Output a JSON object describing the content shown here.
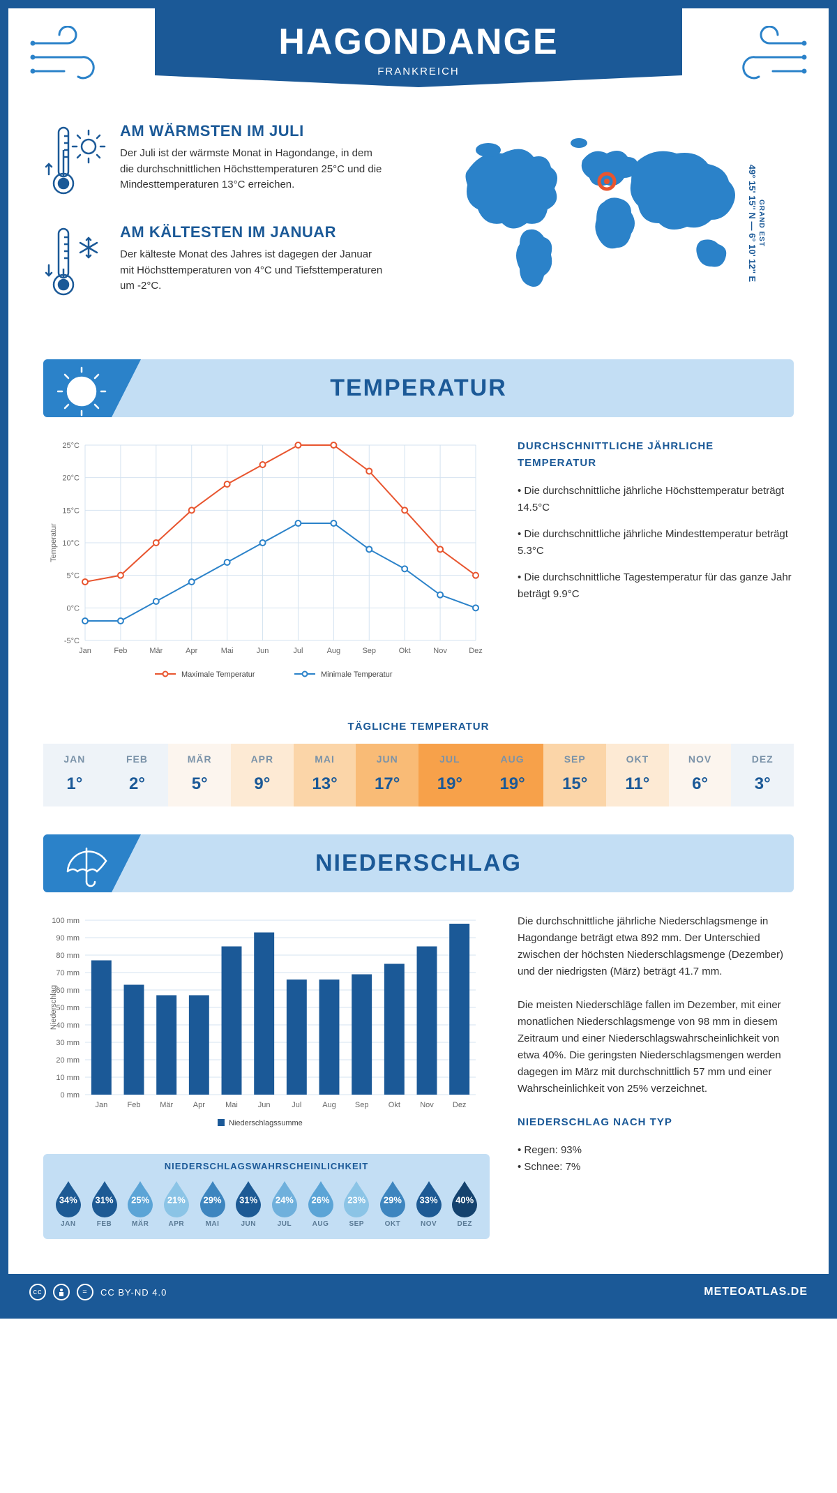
{
  "header": {
    "title": "HAGONDANGE",
    "subtitle": "FRANKREICH"
  },
  "coords": {
    "text": "49° 15' 15'' N — 6° 10' 12'' E",
    "region": "GRAND EST"
  },
  "warmest": {
    "title": "AM WÄRMSTEN IM JULI",
    "body": "Der Juli ist der wärmste Monat in Hagondange, in dem die durchschnittlichen Höchsttemperaturen 25°C und die Mindesttemperaturen 13°C erreichen."
  },
  "coldest": {
    "title": "AM KÄLTESTEN IM JANUAR",
    "body": "Der kälteste Monat des Jahres ist dagegen der Januar mit Höchsttemperaturen von 4°C und Tiefsttemperaturen um -2°C."
  },
  "temperature": {
    "section_title": "TEMPERATUR",
    "chart": {
      "type": "line",
      "months": [
        "Jan",
        "Feb",
        "Mär",
        "Apr",
        "Mai",
        "Jun",
        "Jul",
        "Aug",
        "Sep",
        "Okt",
        "Nov",
        "Dez"
      ],
      "max_series": {
        "label": "Maximale Temperatur",
        "color": "#e8552f",
        "values": [
          4,
          5,
          10,
          15,
          19,
          22,
          25,
          25,
          21,
          15,
          9,
          5
        ]
      },
      "min_series": {
        "label": "Minimale Temperatur",
        "color": "#2b82c9",
        "values": [
          -2,
          -2,
          1,
          4,
          7,
          10,
          13,
          13,
          9,
          6,
          2,
          0
        ]
      },
      "ylabel": "Temperatur",
      "ylim": [
        -5,
        25
      ],
      "ytick_step": 5,
      "grid_color": "#d4e3f0",
      "background_color": "#ffffff"
    },
    "side": {
      "title": "DURCHSCHNITTLICHE JÄHRLICHE TEMPERATUR",
      "bullets": [
        "• Die durchschnittliche jährliche Höchsttemperatur beträgt 14.5°C",
        "• Die durchschnittliche jährliche Mindesttemperatur beträgt 5.3°C",
        "• Die durchschnittliche Tagestemperatur für das ganze Jahr beträgt 9.9°C"
      ]
    }
  },
  "daily": {
    "title": "TÄGLICHE TEMPERATUR",
    "months": [
      "JAN",
      "FEB",
      "MÄR",
      "APR",
      "MAI",
      "JUN",
      "JUL",
      "AUG",
      "SEP",
      "OKT",
      "NOV",
      "DEZ"
    ],
    "values": [
      "1°",
      "2°",
      "5°",
      "9°",
      "13°",
      "17°",
      "19°",
      "19°",
      "15°",
      "11°",
      "6°",
      "3°"
    ],
    "colors": [
      "#eef3f8",
      "#eef3f8",
      "#fcf5ee",
      "#fdead4",
      "#fbd5a8",
      "#f9bb76",
      "#f7a14a",
      "#f7a14a",
      "#fbd5a8",
      "#fdead4",
      "#fcf5ee",
      "#eef3f8"
    ]
  },
  "precip": {
    "section_title": "NIEDERSCHLAG",
    "chart": {
      "type": "bar",
      "months": [
        "Jan",
        "Feb",
        "Mär",
        "Apr",
        "Mai",
        "Jun",
        "Jul",
        "Aug",
        "Sep",
        "Okt",
        "Nov",
        "Dez"
      ],
      "values": [
        77,
        63,
        57,
        57,
        85,
        93,
        66,
        66,
        69,
        75,
        85,
        98
      ],
      "bar_color": "#1b5997",
      "ylabel": "Niederschlag",
      "ylim": [
        0,
        100
      ],
      "ytick_step": 10,
      "legend": "Niederschlagssumme",
      "grid_color": "#d4e3f0"
    },
    "side": {
      "p1": "Die durchschnittliche jährliche Niederschlagsmenge in Hagondange beträgt etwa 892 mm. Der Unterschied zwischen der höchsten Niederschlagsmenge (Dezember) und der niedrigsten (März) beträgt 41.7 mm.",
      "p2": "Die meisten Niederschläge fallen im Dezember, mit einer monatlichen Niederschlagsmenge von 98 mm in diesem Zeitraum und einer Niederschlagswahrscheinlichkeit von etwa 40%. Die geringsten Niederschlagsmengen werden dagegen im März mit durchschnittlich 57 mm und einer Wahrscheinlichkeit von 25% verzeichnet.",
      "type_title": "NIEDERSCHLAG NACH TYP",
      "type_items": [
        "• Regen: 93%",
        "• Schnee: 7%"
      ]
    },
    "prob": {
      "title": "NIEDERSCHLAGSWAHRSCHEINLICHKEIT",
      "months": [
        "JAN",
        "FEB",
        "MÄR",
        "APR",
        "MAI",
        "JUN",
        "JUL",
        "AUG",
        "SEP",
        "OKT",
        "NOV",
        "DEZ"
      ],
      "values": [
        "34%",
        "31%",
        "25%",
        "21%",
        "29%",
        "31%",
        "24%",
        "26%",
        "23%",
        "29%",
        "33%",
        "40%"
      ],
      "colors": [
        "#1d5a94",
        "#1d5a94",
        "#5ba4d6",
        "#8bc4e6",
        "#3d85bf",
        "#1d5a94",
        "#6fb0dc",
        "#5ba4d6",
        "#8bc4e6",
        "#3d85bf",
        "#1d5a94",
        "#14426e"
      ]
    }
  },
  "footer": {
    "license": "CC BY-ND 4.0",
    "site": "METEOATLAS.DE"
  }
}
